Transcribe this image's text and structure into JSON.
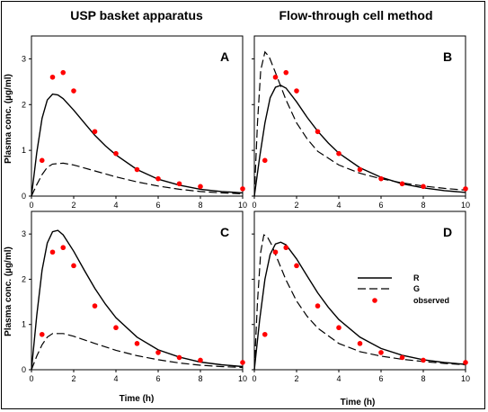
{
  "figure": {
    "col_titles": [
      "USP basket apparatus",
      "Flow-through cell method"
    ],
    "ylabel": "Plasma conc. (µg/ml)",
    "xlabel": "Time (h)"
  },
  "chart_data": {
    "type": "line",
    "x_ticks": [
      "0",
      "2",
      "4",
      "6",
      "8",
      "10"
    ],
    "y_ticks": [
      "0",
      "1",
      "2",
      "3"
    ],
    "xlim": [
      0,
      10
    ],
    "ylim": [
      0,
      3.5
    ],
    "legend": {
      "entries": [
        "R",
        "G",
        "observed"
      ],
      "placement": "right-center of panel D"
    },
    "observed": {
      "x": [
        0.5,
        1,
        1.5,
        2,
        3,
        4,
        5,
        6,
        7,
        8,
        10
      ],
      "y": [
        0.78,
        2.6,
        2.7,
        2.3,
        1.41,
        0.93,
        0.58,
        0.38,
        0.27,
        0.21,
        0.16
      ]
    },
    "panels": [
      {
        "letter": "A",
        "R": {
          "t": [
            0,
            0.25,
            0.5,
            0.75,
            1,
            1.25,
            1.5,
            2,
            2.5,
            3,
            3.5,
            4,
            5,
            6,
            7,
            8,
            9,
            10
          ],
          "c": [
            0,
            0.95,
            1.7,
            2.1,
            2.23,
            2.21,
            2.13,
            1.88,
            1.6,
            1.33,
            1.1,
            0.9,
            0.58,
            0.37,
            0.24,
            0.15,
            0.1,
            0.07
          ]
        },
        "G": {
          "t": [
            0,
            0.25,
            0.5,
            0.75,
            1,
            1.5,
            2,
            3,
            4,
            5,
            6,
            7,
            8,
            9,
            10
          ],
          "c": [
            0,
            0.25,
            0.47,
            0.63,
            0.7,
            0.72,
            0.68,
            0.55,
            0.42,
            0.31,
            0.22,
            0.15,
            0.1,
            0.07,
            0.05
          ]
        }
      },
      {
        "letter": "B",
        "R": {
          "t": [
            0,
            0.25,
            0.5,
            0.75,
            1,
            1.25,
            1.5,
            2,
            2.5,
            3,
            3.5,
            4,
            5,
            6,
            7,
            8,
            9,
            10
          ],
          "c": [
            0,
            0.85,
            1.6,
            2.15,
            2.38,
            2.42,
            2.36,
            2.06,
            1.72,
            1.42,
            1.16,
            0.94,
            0.62,
            0.41,
            0.27,
            0.18,
            0.12,
            0.08
          ]
        },
        "G": {
          "t": [
            0,
            0.15,
            0.3,
            0.5,
            0.7,
            1,
            1.5,
            2,
            2.5,
            3,
            4,
            5,
            6,
            7,
            8,
            9,
            10
          ],
          "c": [
            0,
            1.6,
            2.75,
            3.15,
            3.05,
            2.7,
            2.1,
            1.6,
            1.25,
            0.98,
            0.68,
            0.5,
            0.38,
            0.29,
            0.22,
            0.17,
            0.13
          ]
        }
      },
      {
        "letter": "C",
        "R": {
          "t": [
            0,
            0.25,
            0.5,
            0.75,
            1,
            1.25,
            1.5,
            2,
            2.5,
            3,
            3.5,
            4,
            5,
            6,
            7,
            8,
            9,
            10
          ],
          "c": [
            0,
            1.2,
            2.2,
            2.8,
            3.05,
            3.08,
            2.98,
            2.62,
            2.2,
            1.8,
            1.45,
            1.15,
            0.72,
            0.44,
            0.28,
            0.17,
            0.11,
            0.07
          ]
        },
        "G": {
          "t": [
            0,
            0.25,
            0.5,
            0.75,
            1,
            1.5,
            2,
            3,
            4,
            5,
            6,
            7,
            8,
            9,
            10
          ],
          "c": [
            0,
            0.3,
            0.55,
            0.72,
            0.8,
            0.8,
            0.74,
            0.58,
            0.43,
            0.31,
            0.22,
            0.15,
            0.1,
            0.07,
            0.05
          ]
        }
      },
      {
        "letter": "D",
        "R": {
          "t": [
            0,
            0.25,
            0.5,
            0.75,
            1,
            1.25,
            1.5,
            2,
            2.5,
            3,
            3.5,
            4,
            5,
            6,
            7,
            8,
            9,
            10
          ],
          "c": [
            0,
            1.1,
            2.0,
            2.55,
            2.78,
            2.82,
            2.76,
            2.45,
            2.07,
            1.7,
            1.38,
            1.11,
            0.72,
            0.47,
            0.32,
            0.22,
            0.16,
            0.12
          ]
        },
        "G": {
          "t": [
            0,
            0.15,
            0.3,
            0.45,
            0.6,
            0.8,
            1,
            1.5,
            2,
            2.5,
            3,
            4,
            5,
            6,
            7,
            8,
            9,
            10
          ],
          "c": [
            0,
            1.5,
            2.6,
            2.98,
            2.95,
            2.78,
            2.55,
            1.98,
            1.52,
            1.18,
            0.92,
            0.58,
            0.4,
            0.3,
            0.23,
            0.18,
            0.14,
            0.11
          ]
        }
      }
    ]
  }
}
